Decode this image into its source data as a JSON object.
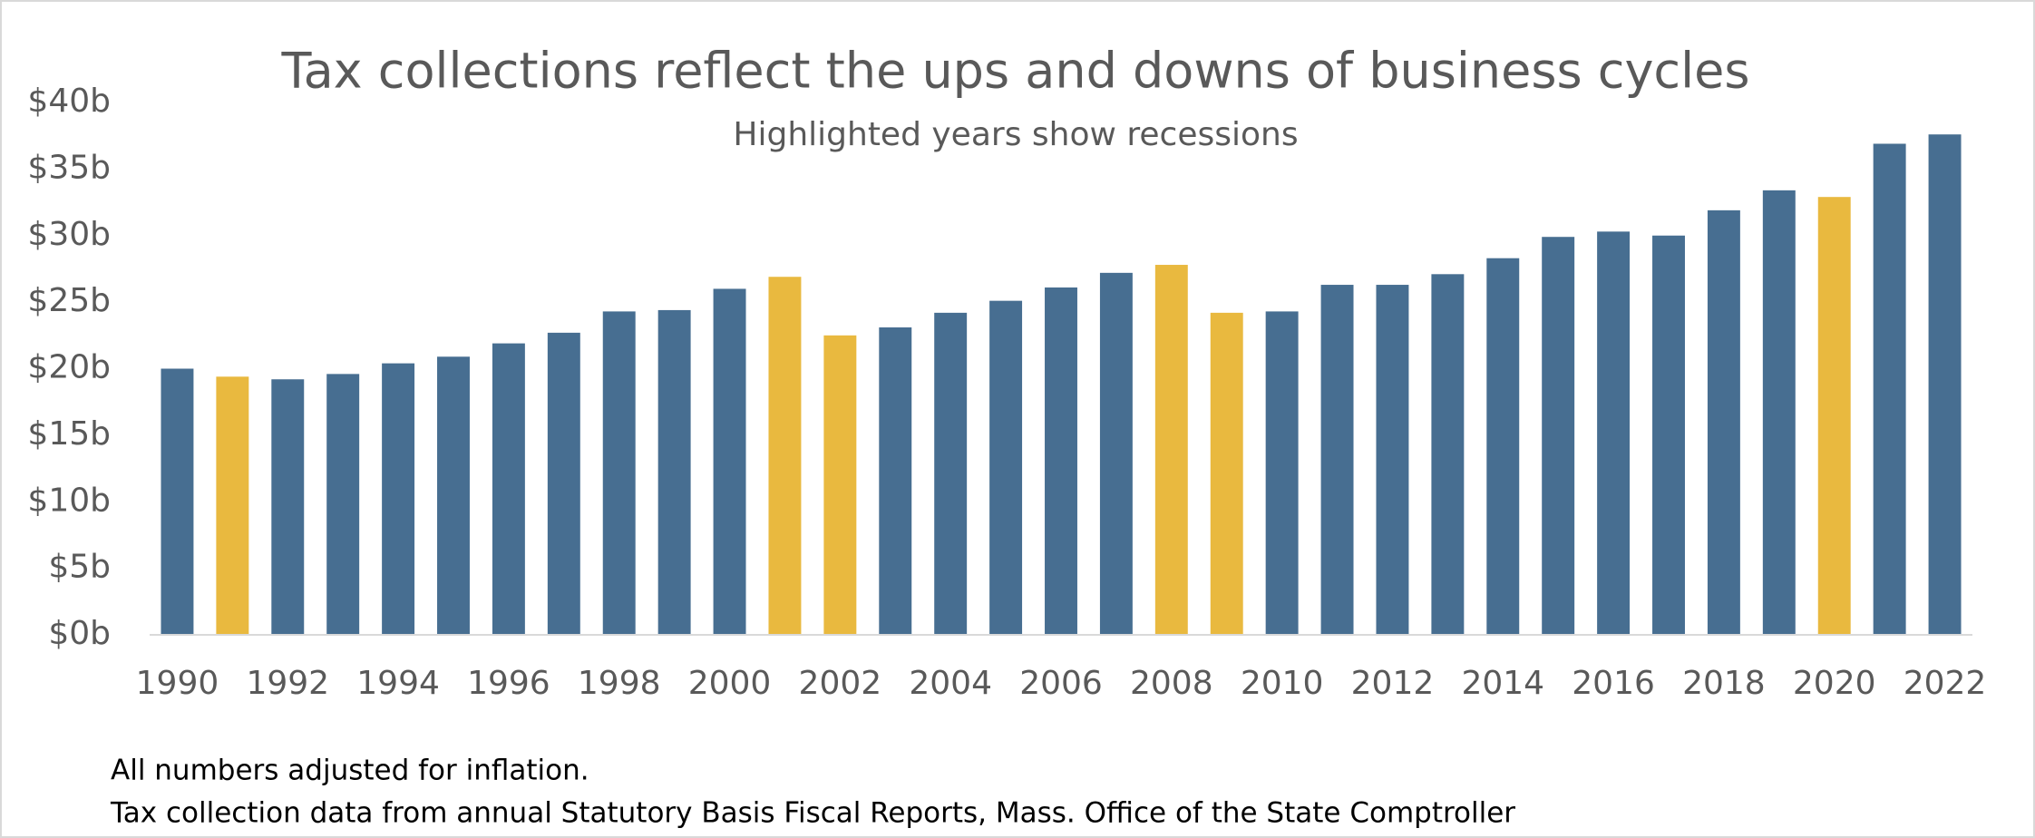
{
  "chart_data": {
    "type": "bar",
    "title": "Tax collections reflect the ups and downs of business cycles",
    "subtitle": "Highlighted years show recessions",
    "categories": [
      "1990",
      null,
      "1992",
      null,
      "1994",
      null,
      "1996",
      null,
      "1998",
      null,
      "2000",
      null,
      "2002",
      null,
      "2004",
      null,
      "2006",
      null,
      "2008",
      null,
      "2010",
      null,
      "2012",
      null,
      "2014",
      null,
      "2016",
      null,
      "2018",
      null,
      "2020",
      null,
      "2022"
    ],
    "values": [
      20.0,
      19.4,
      19.2,
      19.6,
      20.4,
      20.9,
      21.9,
      22.7,
      24.3,
      24.4,
      26.0,
      26.9,
      22.5,
      23.1,
      24.2,
      25.1,
      26.1,
      27.2,
      27.8,
      24.2,
      24.3,
      26.3,
      26.3,
      27.1,
      28.3,
      29.9,
      30.3,
      30.0,
      31.9,
      33.4,
      32.9,
      36.9,
      37.6
    ],
    "colors": [
      "#476e91",
      "#e9b93f",
      "#476e91",
      "#476e91",
      "#476e91",
      "#476e91",
      "#476e91",
      "#476e91",
      "#476e91",
      "#476e91",
      "#476e91",
      "#e9b93f",
      "#e9b93f",
      "#476e91",
      "#476e91",
      "#476e91",
      "#476e91",
      "#476e91",
      "#e9b93f",
      "#e9b93f",
      "#476e91",
      "#476e91",
      "#476e91",
      "#476e91",
      "#476e91",
      "#476e91",
      "#476e91",
      "#476e91",
      "#476e91",
      "#476e91",
      "#e9b93f",
      "#476e91",
      "#476e91"
    ],
    "ylim": [
      0,
      40
    ],
    "yticks": [
      {
        "value": 0,
        "label": "$0b"
      },
      {
        "value": 5,
        "label": "$5b"
      },
      {
        "value": 10,
        "label": "$10b"
      },
      {
        "value": 15,
        "label": "$15b"
      },
      {
        "value": 20,
        "label": "$20b"
      },
      {
        "value": 25,
        "label": "$25b"
      },
      {
        "value": 30,
        "label": "$30b"
      },
      {
        "value": 35,
        "label": "$35b"
      },
      {
        "value": 40,
        "label": "$40b"
      }
    ],
    "grid": false,
    "notes": [
      "All numbers adjusted for inflation.",
      "Tax collection data from annual Statutory Basis Fiscal Reports, Mass. Office of the State Comptroller"
    ]
  }
}
